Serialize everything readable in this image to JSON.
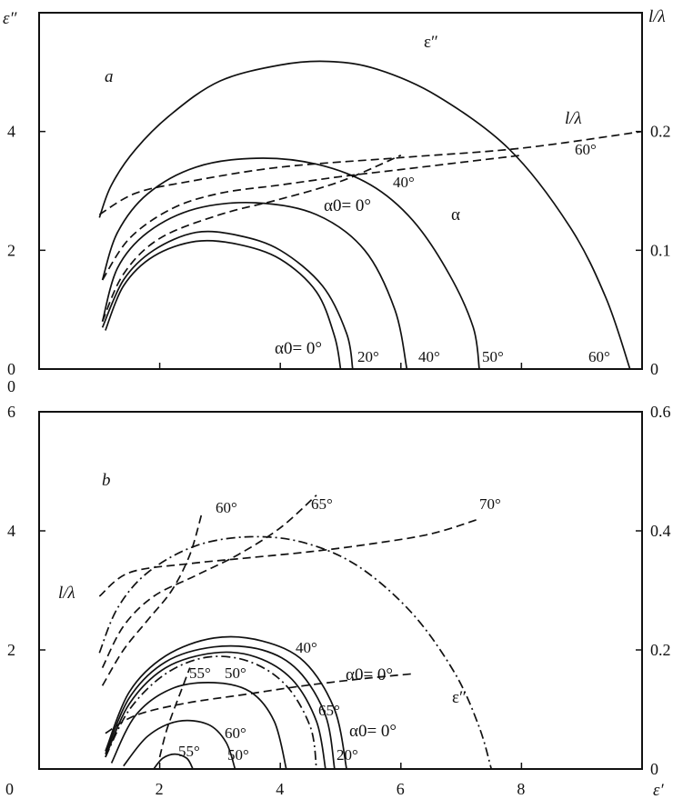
{
  "chart_data": [
    {
      "panel": "a",
      "type": "line",
      "panel_label": "a",
      "left_axis_label": "ε″",
      "right_axis_label": "l/λ",
      "ylim": [
        0,
        6
      ],
      "xlim": [
        0,
        10
      ],
      "right_ylim": [
        0,
        0.3
      ],
      "left_ticks": [
        "0",
        "2",
        "4"
      ],
      "right_ticks": [
        "0",
        "0.1",
        "0.2"
      ],
      "curve_labels": {
        "eps": "ε″",
        "ll": "l/λ",
        "alpha": "α",
        "a_60": "60°",
        "a_40": "40°",
        "a_0": "α0= 0°",
        "x_0": "α0= 0°",
        "x_20": "20°",
        "x_40": "40°",
        "x_50": "50°",
        "x_60": "60°"
      },
      "series": [
        {
          "name": "ε″",
          "style": "solid",
          "axis": "left",
          "x": [
            1.0,
            1.2,
            1.6,
            2.2,
            3.0,
            4.0,
            4.8,
            5.6,
            6.6,
            7.8,
            8.8,
            9.4,
            9.8
          ],
          "y": [
            2.55,
            3.1,
            3.7,
            4.3,
            4.85,
            5.12,
            5.18,
            5.05,
            4.6,
            3.7,
            2.4,
            1.2,
            0.0
          ]
        },
        {
          "name": "α (α0=60°)",
          "style": "solid",
          "axis": "left",
          "x": [
            1.05,
            1.3,
            1.8,
            2.6,
            3.6,
            4.6,
            5.5,
            6.2,
            6.8,
            7.2,
            7.3
          ],
          "y": [
            1.5,
            2.3,
            2.95,
            3.4,
            3.55,
            3.45,
            3.1,
            2.5,
            1.6,
            0.7,
            0.0
          ]
        },
        {
          "name": "α (α0=40°)",
          "style": "solid",
          "axis": "left",
          "x": [
            1.05,
            1.3,
            1.8,
            2.6,
            3.6,
            4.6,
            5.4,
            5.9,
            6.1
          ],
          "y": [
            0.8,
            1.7,
            2.3,
            2.7,
            2.8,
            2.6,
            2.0,
            1.0,
            0.0
          ]
        },
        {
          "name": "α (α0=20°)",
          "style": "solid",
          "axis": "left",
          "x": [
            1.05,
            1.4,
            1.9,
            2.6,
            3.3,
            4.0,
            4.7,
            5.1,
            5.2
          ],
          "y": [
            0.7,
            1.5,
            2.0,
            2.3,
            2.25,
            2.0,
            1.4,
            0.6,
            0.0
          ]
        },
        {
          "name": "α (α0=0°)",
          "style": "solid",
          "axis": "left",
          "x": [
            1.1,
            1.4,
            1.9,
            2.6,
            3.3,
            4.0,
            4.6,
            4.9,
            5.0
          ],
          "y": [
            0.65,
            1.4,
            1.9,
            2.15,
            2.1,
            1.85,
            1.3,
            0.55,
            0.0
          ]
        },
        {
          "name": "l/λ (α0=60°)",
          "style": "dashed",
          "axis": "right",
          "x": [
            1.0,
            1.6,
            2.5,
            4.0,
            6.0,
            8.0,
            10.0
          ],
          "y": [
            0.13,
            0.148,
            0.158,
            0.17,
            0.178,
            0.186,
            0.2
          ]
        },
        {
          "name": "l/λ (α0=40°)",
          "style": "dashed",
          "axis": "right",
          "x": [
            1.05,
            1.5,
            2.2,
            3.0,
            4.0,
            5.0,
            6.0,
            7.0,
            8.0
          ],
          "y": [
            0.075,
            0.11,
            0.135,
            0.148,
            0.155,
            0.162,
            0.168,
            0.174,
            0.18
          ]
        },
        {
          "name": "l/λ (α0=0°)",
          "style": "dashed",
          "axis": "right",
          "x": [
            1.05,
            1.4,
            2.0,
            3.0,
            4.0,
            5.0,
            6.0
          ],
          "y": [
            0.04,
            0.08,
            0.11,
            0.13,
            0.143,
            0.158,
            0.18
          ]
        }
      ]
    },
    {
      "panel": "b",
      "type": "line",
      "panel_label": "b",
      "left_axis_label": "",
      "right_axis_label": "",
      "xlabel": "ε′",
      "xlim": [
        0,
        10
      ],
      "ylim": [
        0,
        6
      ],
      "right_ylim": [
        0,
        0.6
      ],
      "x_ticks": [
        "0",
        "2",
        "4",
        "6",
        "8"
      ],
      "left_ticks": [
        "2",
        "4",
        "6"
      ],
      "right_ticks": [
        "0",
        "0.2",
        "0.4",
        "0.6"
      ],
      "curve_labels": {
        "ll": "l/λ",
        "eps": "ε″",
        "d60": "60°",
        "d65": "65°",
        "d70": "70°",
        "c40": "40°",
        "c0": "α0= 0°",
        "c55a": "55°",
        "c50a": "50°",
        "c65": "65°",
        "c0b": "α0= 0°",
        "c60": "60°",
        "c55b": "55°",
        "c50b": "50°",
        "c20": "20°"
      },
      "series": [
        {
          "name": "ε″",
          "style": "dashdot",
          "axis": "left",
          "x": [
            1.0,
            1.3,
            1.8,
            2.6,
            3.5,
            4.4,
            5.3,
            6.2,
            6.9,
            7.3,
            7.5
          ],
          "y": [
            1.95,
            2.7,
            3.3,
            3.75,
            3.9,
            3.8,
            3.4,
            2.6,
            1.6,
            0.7,
            0.0
          ]
        },
        {
          "name": "l/λ (α0=70°)",
          "style": "dashed",
          "axis": "right",
          "x": [
            1.0,
            1.5,
            2.5,
            3.5,
            4.5,
            5.5,
            6.5,
            7.3
          ],
          "y": [
            0.29,
            0.33,
            0.345,
            0.355,
            0.365,
            0.378,
            0.395,
            0.42
          ]
        },
        {
          "name": "l/λ (α0=65°)",
          "style": "dashed",
          "axis": "right",
          "x": [
            1.05,
            1.4,
            1.9,
            2.6,
            3.3,
            4.0,
            4.6
          ],
          "y": [
            0.17,
            0.24,
            0.29,
            0.325,
            0.36,
            0.405,
            0.46
          ]
        },
        {
          "name": "l/λ (α0=60°)",
          "style": "dashed",
          "axis": "right",
          "x": [
            1.05,
            1.4,
            1.8,
            2.2,
            2.5,
            2.7
          ],
          "y": [
            0.14,
            0.2,
            0.25,
            0.3,
            0.36,
            0.43
          ]
        },
        {
          "name": "l/λ (α0=0°)",
          "style": "dashed",
          "axis": "right",
          "x": [
            1.1,
            1.6,
            2.4,
            3.4,
            4.4,
            5.4,
            6.2
          ],
          "y": [
            0.06,
            0.09,
            0.11,
            0.125,
            0.14,
            0.152,
            0.16
          ]
        },
        {
          "name": "α (α0=0°)",
          "style": "solid",
          "axis": "left",
          "x": [
            1.1,
            1.5,
            2.1,
            2.9,
            3.7,
            4.4,
            4.9,
            5.1
          ],
          "y": [
            0.3,
            1.3,
            1.9,
            2.2,
            2.15,
            1.8,
            1.0,
            0.0
          ]
        },
        {
          "name": "α (α0=20°)",
          "style": "solid",
          "axis": "left",
          "x": [
            1.1,
            1.5,
            2.1,
            2.9,
            3.7,
            4.3,
            4.75,
            4.9
          ],
          "y": [
            0.25,
            1.2,
            1.8,
            2.05,
            2.0,
            1.65,
            0.9,
            0.0
          ]
        },
        {
          "name": "α (α0=40°)",
          "style": "solid",
          "axis": "left",
          "x": [
            1.1,
            1.5,
            2.1,
            2.9,
            3.6,
            4.2,
            4.6,
            4.75
          ],
          "y": [
            0.2,
            1.1,
            1.7,
            1.95,
            1.88,
            1.5,
            0.8,
            0.0
          ]
        },
        {
          "name": "α (α0=65°)",
          "style": "dashdot",
          "axis": "left",
          "x": [
            1.1,
            1.5,
            2.1,
            2.8,
            3.5,
            4.1,
            4.5,
            4.6
          ],
          "y": [
            0.2,
            1.0,
            1.6,
            1.88,
            1.8,
            1.4,
            0.7,
            0.0
          ]
        },
        {
          "name": "α (α0=50°)",
          "style": "solid",
          "axis": "left",
          "x": [
            1.2,
            1.6,
            2.2,
            2.9,
            3.5,
            3.9,
            4.1
          ],
          "y": [
            0.1,
            0.9,
            1.35,
            1.45,
            1.3,
            0.8,
            0.0
          ]
        },
        {
          "name": "α (α0=55°)",
          "style": "solid",
          "axis": "left",
          "x": [
            1.4,
            1.8,
            2.3,
            2.8,
            3.1,
            3.25
          ],
          "y": [
            0.05,
            0.55,
            0.8,
            0.75,
            0.45,
            0.0
          ]
        },
        {
          "name": "α (α0=60°)",
          "style": "solid",
          "axis": "left",
          "x": [
            1.9,
            2.05,
            2.25,
            2.45,
            2.55
          ],
          "y": [
            0.0,
            0.18,
            0.25,
            0.18,
            0.0
          ]
        },
        {
          "name": "l/λ (α0=55°)",
          "style": "dashed",
          "axis": "right",
          "x": [
            2.0,
            2.1,
            2.2,
            2.35,
            2.5
          ],
          "y": [
            0.02,
            0.06,
            0.09,
            0.13,
            0.17
          ]
        }
      ]
    }
  ]
}
